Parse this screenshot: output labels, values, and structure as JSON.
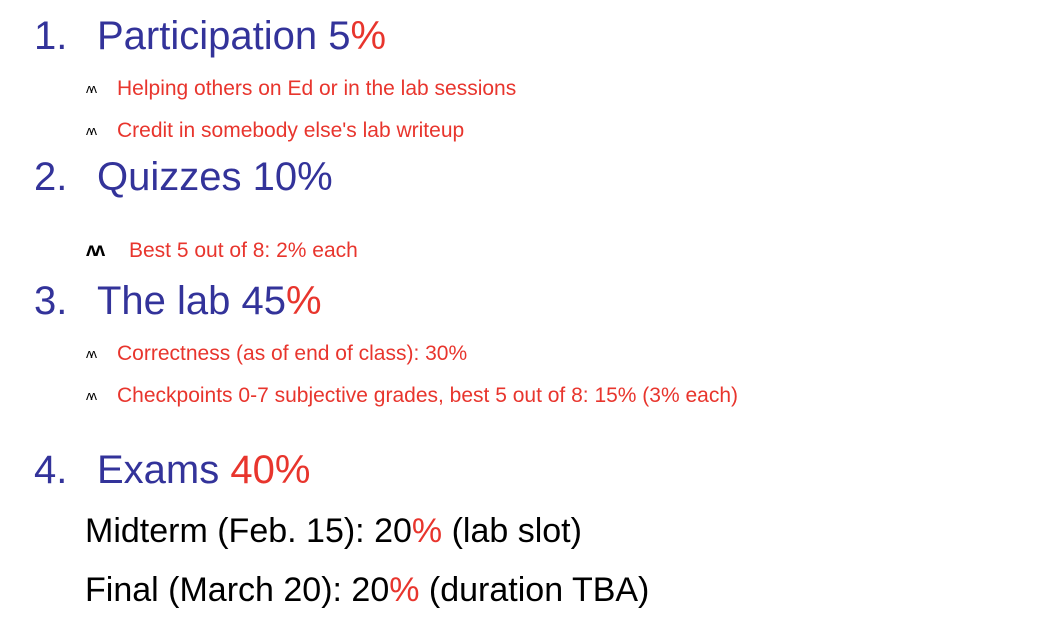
{
  "colors": {
    "heading_blue": "#33339a",
    "accent_red": "#e8352d",
    "body_black": "#000000"
  },
  "bullet_icon": "wavy-bullet-icon",
  "bullet_glyph": "ʌʌ",
  "sections": [
    {
      "number": "1.",
      "title": "Participation 5",
      "percent": "%",
      "items": [
        "Helping others on Ed or in the lab sessions",
        "Credit in somebody else's lab writeup"
      ]
    },
    {
      "number": "2.",
      "title": "Quizzes 10%",
      "items": [
        "Best 5 out of 8: 2% each"
      ]
    },
    {
      "number": "3.",
      "title": "The lab 45",
      "percent": "%",
      "items": [
        "Correctness (as of end of class): 30%",
        "Checkpoints 0-7 subjective grades, best 5 out of 8: 15% (3% each)"
      ]
    },
    {
      "number": "4.",
      "title": "Exams ",
      "percent_value": "40%",
      "lines": [
        {
          "before": "Midterm (Feb. 15): 20",
          "percent": "%",
          "after": " (lab slot)"
        },
        {
          "before": "Final (March 20): 20",
          "percent": "%",
          "after": " (duration TBA)"
        }
      ]
    }
  ]
}
